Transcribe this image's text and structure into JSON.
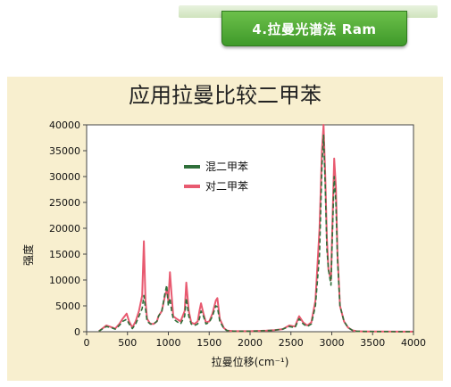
{
  "header": {
    "banner_text": "4.拉曼光谱法 Ram"
  },
  "colors": {
    "banner_green": "#4caf32",
    "panel_background": "#f8efcf",
    "series_mixed": "#2f6f3a",
    "series_para": "#e85a70"
  },
  "chart_data": {
    "type": "line",
    "title": "应用拉曼比较二甲苯",
    "xlabel": "拉曼位移(cm⁻¹)",
    "ylabel": "强度",
    "xlim": [
      0,
      4000
    ],
    "ylim": [
      0,
      40000
    ],
    "xticks": [
      0,
      500,
      1000,
      1500,
      2000,
      2500,
      3000,
      3500,
      4000
    ],
    "yticks": [
      0,
      5000,
      10000,
      15000,
      20000,
      25000,
      30000,
      35000,
      40000
    ],
    "grid": false,
    "legend_position": "upper-center",
    "series": [
      {
        "name": "混二甲苯",
        "color": "#2f6f3a",
        "x": [
          150,
          200,
          240,
          300,
          350,
          400,
          440,
          490,
          520,
          560,
          600,
          640,
          680,
          700,
          720,
          740,
          780,
          820,
          860,
          880,
          920,
          960,
          980,
          1000,
          1020,
          1040,
          1060,
          1100,
          1150,
          1200,
          1220,
          1250,
          1280,
          1320,
          1360,
          1380,
          1400,
          1430,
          1460,
          1500,
          1540,
          1580,
          1600,
          1630,
          1680,
          1720,
          1800,
          1900,
          2000,
          2100,
          2200,
          2300,
          2400,
          2480,
          2550,
          2600,
          2650,
          2700,
          2750,
          2800,
          2850,
          2880,
          2900,
          2920,
          2940,
          2960,
          2990,
          3010,
          3030,
          3050,
          3070,
          3100,
          3150,
          3200,
          3250,
          3300,
          3400,
          3600,
          3800,
          4000
        ],
        "y": [
          100,
          600,
          1000,
          800,
          500,
          1200,
          2000,
          2400,
          1500,
          600,
          1500,
          3000,
          4500,
          7000,
          4500,
          2000,
          1500,
          1500,
          2000,
          3000,
          4000,
          7500,
          9000,
          5000,
          6500,
          4000,
          2500,
          2000,
          1500,
          3000,
          6500,
          3000,
          1500,
          1200,
          1500,
          2500,
          4000,
          3000,
          1500,
          1800,
          3000,
          5000,
          4800,
          2000,
          600,
          200,
          100,
          100,
          100,
          150,
          200,
          300,
          500,
          1000,
          800,
          2500,
          1500,
          1000,
          1500,
          5000,
          15000,
          32000,
          38000,
          28000,
          16000,
          12000,
          9000,
          20000,
          30000,
          25000,
          14000,
          5000,
          2000,
          800,
          300,
          100,
          50,
          30,
          20,
          10
        ]
      },
      {
        "name": "对二甲苯",
        "color": "#e85a70",
        "x": [
          150,
          200,
          240,
          300,
          350,
          400,
          440,
          490,
          520,
          560,
          600,
          640,
          680,
          700,
          720,
          740,
          780,
          820,
          860,
          880,
          920,
          960,
          980,
          1000,
          1020,
          1040,
          1060,
          1100,
          1150,
          1200,
          1220,
          1250,
          1280,
          1320,
          1360,
          1380,
          1400,
          1430,
          1460,
          1500,
          1540,
          1580,
          1600,
          1630,
          1680,
          1720,
          1800,
          1900,
          2000,
          2100,
          2200,
          2300,
          2400,
          2480,
          2550,
          2600,
          2650,
          2700,
          2750,
          2800,
          2850,
          2880,
          2900,
          2920,
          2940,
          2960,
          2990,
          3010,
          3030,
          3050,
          3070,
          3100,
          3150,
          3200,
          3250,
          3300,
          3400,
          3600,
          3800,
          4000
        ],
        "y": [
          100,
          700,
          1200,
          900,
          600,
          1500,
          2500,
          3500,
          2000,
          800,
          2000,
          4000,
          7000,
          17500,
          6000,
          2500,
          1500,
          1500,
          2000,
          3000,
          4000,
          7000,
          8000,
          6000,
          11500,
          7000,
          3000,
          2500,
          2000,
          4000,
          9500,
          4000,
          1800,
          1500,
          2000,
          4000,
          5500,
          3500,
          1800,
          2000,
          3500,
          6000,
          6500,
          2500,
          700,
          200,
          100,
          100,
          100,
          150,
          200,
          300,
          500,
          1200,
          1000,
          3000,
          1800,
          1200,
          1800,
          6000,
          20000,
          35000,
          40000,
          30000,
          18000,
          12000,
          10000,
          22000,
          33500,
          28000,
          15000,
          5000,
          2000,
          800,
          300,
          100,
          50,
          30,
          20,
          10
        ]
      }
    ]
  }
}
